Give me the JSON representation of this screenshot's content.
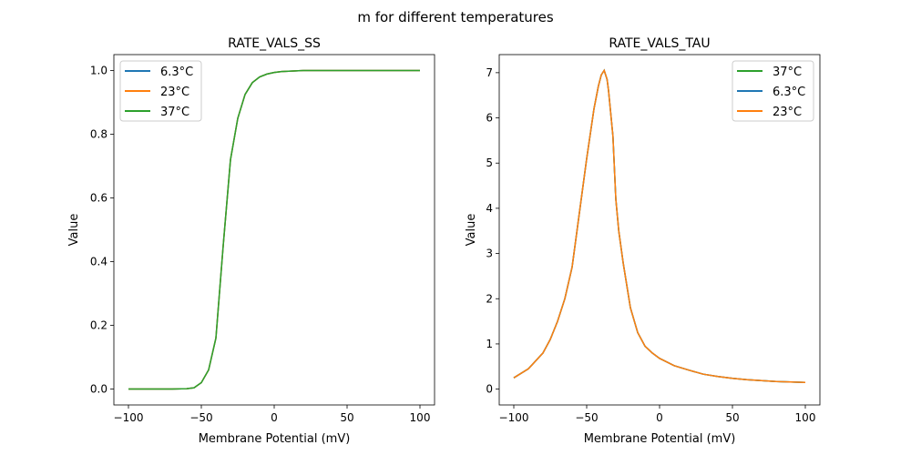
{
  "suptitle": "m for different temperatures",
  "colors": {
    "6.3°C": "#1f77b4",
    "23°C": "#ff7f0e",
    "37°C": "#2ca02c"
  },
  "chart_data": [
    {
      "type": "line",
      "title": "RATE_VALS_SS",
      "xlabel": "Membrane Potential (mV)",
      "ylabel": "Value",
      "xlim": [
        -110,
        110
      ],
      "ylim": [
        -0.05,
        1.05
      ],
      "xticks": [
        -100,
        -50,
        0,
        50,
        100
      ],
      "xtick_labels": [
        "−100",
        "−50",
        "0",
        "50",
        "100"
      ],
      "yticks": [
        0,
        0.2,
        0.4,
        0.6,
        0.8,
        1.0
      ],
      "ytick_labels": [
        "0.0",
        "0.2",
        "0.4",
        "0.6",
        "0.8",
        "1.0"
      ],
      "legend_position": "upper-left",
      "legend": [
        "6.3°C",
        "23°C",
        "37°C"
      ],
      "x": [
        -100,
        -90,
        -80,
        -70,
        -60,
        -55,
        -50,
        -45,
        -40,
        -35,
        -30,
        -25,
        -20,
        -15,
        -10,
        -5,
        0,
        5,
        10,
        15,
        20,
        30,
        40,
        50,
        60,
        70,
        80,
        90,
        100
      ],
      "series": [
        {
          "name": "6.3°C",
          "values": [
            0,
            0,
            0,
            0,
            0.001,
            0.004,
            0.02,
            0.06,
            0.16,
            0.45,
            0.72,
            0.85,
            0.925,
            0.962,
            0.98,
            0.989,
            0.994,
            0.997,
            0.998,
            0.999,
            1,
            1,
            1,
            1,
            1,
            1,
            1,
            1,
            1
          ]
        },
        {
          "name": "23°C",
          "values": [
            0,
            0,
            0,
            0,
            0.001,
            0.004,
            0.02,
            0.06,
            0.16,
            0.45,
            0.72,
            0.85,
            0.925,
            0.962,
            0.98,
            0.989,
            0.994,
            0.997,
            0.998,
            0.999,
            1,
            1,
            1,
            1,
            1,
            1,
            1,
            1,
            1
          ]
        },
        {
          "name": "37°C",
          "values": [
            0,
            0,
            0,
            0,
            0.001,
            0.004,
            0.02,
            0.06,
            0.16,
            0.45,
            0.72,
            0.85,
            0.925,
            0.962,
            0.98,
            0.989,
            0.994,
            0.997,
            0.998,
            0.999,
            1,
            1,
            1,
            1,
            1,
            1,
            1,
            1,
            1
          ]
        }
      ]
    },
    {
      "type": "line",
      "title": "RATE_VALS_TAU",
      "xlabel": "Membrane Potential (mV)",
      "ylabel": "Value",
      "xlim": [
        -110,
        110
      ],
      "ylim": [
        -0.35,
        7.4
      ],
      "xticks": [
        -100,
        -50,
        0,
        50,
        100
      ],
      "xtick_labels": [
        "−100",
        "−50",
        "0",
        "50",
        "100"
      ],
      "yticks": [
        0,
        1,
        2,
        3,
        4,
        5,
        6,
        7
      ],
      "ytick_labels": [
        "0",
        "1",
        "2",
        "3",
        "4",
        "5",
        "6",
        "7"
      ],
      "legend_position": "upper-right",
      "legend": [
        "37°C",
        "6.3°C",
        "23°C"
      ],
      "x": [
        -100,
        -90,
        -80,
        -75,
        -70,
        -65,
        -60,
        -55,
        -50,
        -45,
        -42,
        -40,
        -38,
        -36,
        -35,
        -32,
        -30,
        -28,
        -25,
        -20,
        -15,
        -10,
        -5,
        0,
        10,
        20,
        30,
        40,
        50,
        60,
        70,
        80,
        90,
        100
      ],
      "series": [
        {
          "name": "37°C",
          "values": [
            0.25,
            0.45,
            0.8,
            1.1,
            1.5,
            2.0,
            2.7,
            3.9,
            5.1,
            6.2,
            6.7,
            6.95,
            7.05,
            6.85,
            6.6,
            5.6,
            4.2,
            3.5,
            2.8,
            1.8,
            1.25,
            0.95,
            0.8,
            0.68,
            0.52,
            0.42,
            0.33,
            0.28,
            0.24,
            0.21,
            0.19,
            0.17,
            0.16,
            0.15
          ]
        },
        {
          "name": "6.3°C",
          "values": [
            0.25,
            0.45,
            0.8,
            1.1,
            1.5,
            2.0,
            2.7,
            3.9,
            5.1,
            6.2,
            6.7,
            6.95,
            7.05,
            6.85,
            6.6,
            5.6,
            4.2,
            3.5,
            2.8,
            1.8,
            1.25,
            0.95,
            0.8,
            0.68,
            0.52,
            0.42,
            0.33,
            0.28,
            0.24,
            0.21,
            0.19,
            0.17,
            0.16,
            0.15
          ]
        },
        {
          "name": "23°C",
          "values": [
            0.25,
            0.45,
            0.8,
            1.1,
            1.5,
            2.0,
            2.7,
            3.9,
            5.1,
            6.2,
            6.7,
            6.95,
            7.05,
            6.85,
            6.6,
            5.6,
            4.2,
            3.5,
            2.8,
            1.8,
            1.25,
            0.95,
            0.8,
            0.68,
            0.52,
            0.42,
            0.33,
            0.28,
            0.24,
            0.21,
            0.19,
            0.17,
            0.16,
            0.15
          ]
        }
      ]
    }
  ]
}
